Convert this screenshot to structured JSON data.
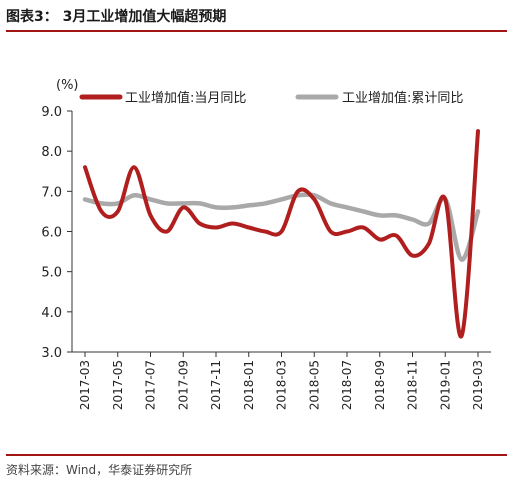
{
  "header": {
    "title": "图表3： 3月工业增加值大幅超预期"
  },
  "footer": {
    "source": "资料来源：Wind，华泰证券研究所"
  },
  "chart_data": {
    "type": "line",
    "unit": "(%)",
    "ylim": [
      3.0,
      9.0
    ],
    "yticks": [
      "9.0",
      "8.0",
      "7.0",
      "6.0",
      "5.0",
      "4.0",
      "3.0"
    ],
    "xtick_labels": [
      "2017-03",
      "2017-05",
      "2017-07",
      "2017-09",
      "2017-11",
      "2018-01",
      "2018-03",
      "2018-05",
      "2018-07",
      "2018-09",
      "2018-11",
      "2019-01",
      "2019-03"
    ],
    "x": [
      "2017-03",
      "2017-04",
      "2017-05",
      "2017-06",
      "2017-07",
      "2017-08",
      "2017-09",
      "2017-10",
      "2017-11",
      "2017-12",
      "2018-01",
      "2018-02",
      "2018-03",
      "2018-04",
      "2018-05",
      "2018-06",
      "2018-07",
      "2018-08",
      "2018-09",
      "2018-10",
      "2018-11",
      "2018-12",
      "2019-01",
      "2019-02",
      "2019-03"
    ],
    "series": [
      {
        "name": "工业增加值:当月同比",
        "color": "#b01e1e",
        "values": [
          7.6,
          6.5,
          6.5,
          7.6,
          6.4,
          6.0,
          6.6,
          6.2,
          6.1,
          6.2,
          6.1,
          6.0,
          6.0,
          7.0,
          6.8,
          6.0,
          6.0,
          6.1,
          5.8,
          5.9,
          5.4,
          5.7,
          6.8,
          3.4,
          8.5
        ]
      },
      {
        "name": "工业增加值:累计同比",
        "color": "#a9a9a9",
        "values": [
          6.8,
          6.7,
          6.7,
          6.9,
          6.8,
          6.7,
          6.7,
          6.7,
          6.6,
          6.6,
          6.65,
          6.7,
          6.8,
          6.9,
          6.9,
          6.7,
          6.6,
          6.5,
          6.4,
          6.4,
          6.3,
          6.2,
          6.8,
          5.3,
          6.5
        ]
      }
    ],
    "legend_position": "top",
    "grid": false
  }
}
